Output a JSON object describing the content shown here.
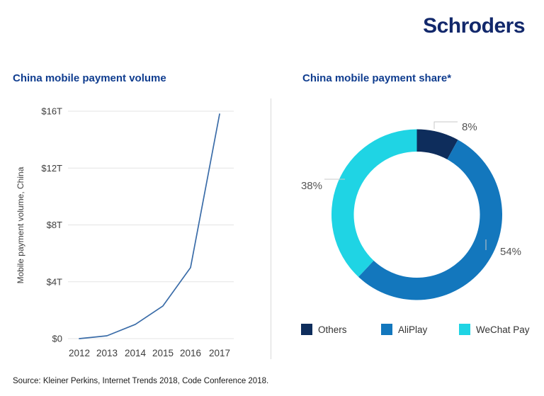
{
  "logo": {
    "text": "Schroders",
    "color": "#12286b"
  },
  "source": {
    "text": "Source: Kleiner Perkins, Internet Trends 2018, Code Conference 2018."
  },
  "colors": {
    "title": "#103d8f",
    "axis_text": "#3d3d3d",
    "gridline": "#e4e4e4",
    "divider": "#d9d9d9",
    "leader_line": "#c9c9c9",
    "percent_label": "#555555"
  },
  "chart_data": [
    {
      "type": "line",
      "title": "China mobile payment volume",
      "ylabel": "Mobile payment volume, China",
      "x": [
        "2012",
        "2013",
        "2014",
        "2015",
        "2016",
        "2017"
      ],
      "values": [
        0,
        0.2,
        1.0,
        2.3,
        5.0,
        15.8
      ],
      "unit": "trillion USD",
      "ylim": [
        0,
        16
      ],
      "yticks": [
        0,
        4,
        8,
        12,
        16
      ],
      "ytick_labels": [
        "$0",
        "$4T",
        "$8T",
        "$12T",
        "$16T"
      ],
      "grid": true,
      "line_color": "#3a6ca8"
    },
    {
      "type": "pie",
      "subtype": "donut",
      "title": "China mobile payment share*",
      "start_angle_deg": 0,
      "direction": "clockwise",
      "legend_position": "bottom",
      "slices": [
        {
          "label": "Others",
          "value": 8,
          "data_label": "8%",
          "color": "#0e2d5c"
        },
        {
          "label": "AliPlay",
          "value": 54,
          "data_label": "54%",
          "color": "#1377bd"
        },
        {
          "label": "WeChat Pay",
          "value": 38,
          "data_label": "38%",
          "color": "#1fd4e4"
        }
      ]
    }
  ]
}
